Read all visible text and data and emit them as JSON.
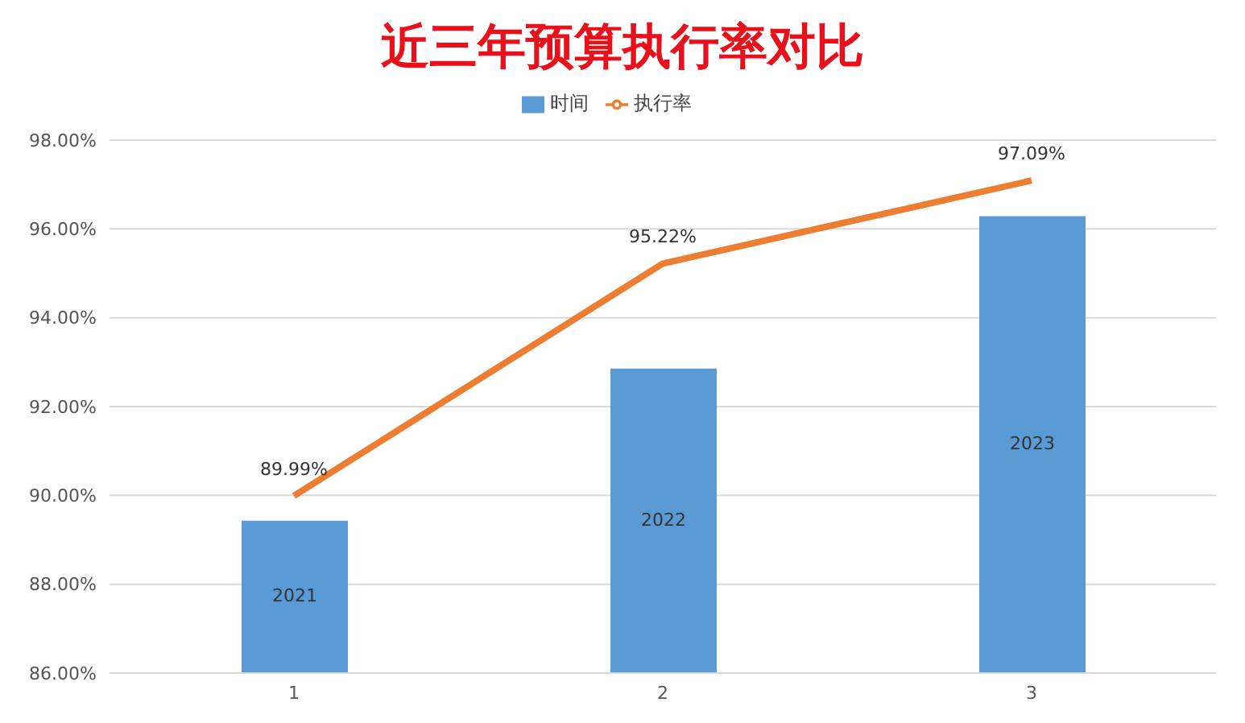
{
  "chart_data": {
    "type": "bar",
    "title": "近三年预算执行率对比",
    "categories": [
      "1",
      "2",
      "3"
    ],
    "series": [
      {
        "name": "时间",
        "color": "#5b9bd5",
        "axis": "y2",
        "values": [
          2021,
          2022,
          2023
        ],
        "value_labels": [
          "2021",
          "2022",
          "2023"
        ]
      },
      {
        "name": "执行率",
        "type": "line",
        "color": "#ed7d31",
        "values": [
          89.99,
          95.22,
          97.09
        ],
        "value_labels": [
          "89.99%",
          "95.22%",
          "97.09%"
        ]
      }
    ],
    "ylim": [
      86,
      98
    ],
    "yticks": [
      {
        "value": 86,
        "label": "86.00%"
      },
      {
        "value": 88,
        "label": "88.00%"
      },
      {
        "value": 90,
        "label": "90.00%"
      },
      {
        "value": 92,
        "label": "92.00%"
      },
      {
        "value": 94,
        "label": "94.00%"
      },
      {
        "value": 96,
        "label": "96.00%"
      },
      {
        "value": 98,
        "label": "98.00%"
      }
    ],
    "y2lim": [
      2020,
      2023.5
    ],
    "grid": "y",
    "legend": "top",
    "marker": "none",
    "line_style": "solid"
  }
}
